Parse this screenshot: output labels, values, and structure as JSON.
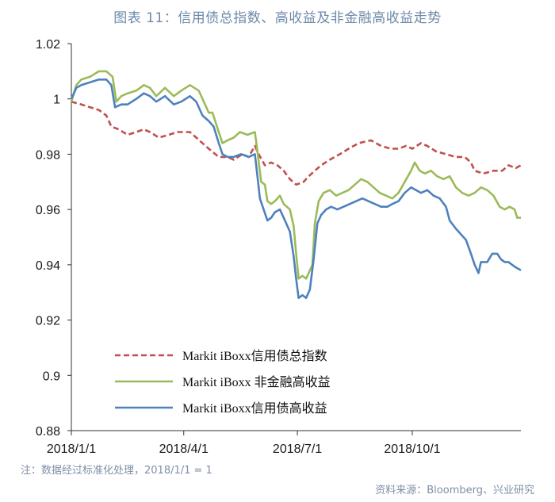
{
  "title": "图表 11：信用债总指数、高收益及非金融高收益走势",
  "note": "注：数据经过标准化处理，2018/1/1 = 1",
  "source": "资料来源：Bloomberg、兴业研究",
  "colors": {
    "total": "#c0504d",
    "nonfin": "#9bbb59",
    "hy": "#4f81bd",
    "axis": "#333333"
  },
  "chart_data": {
    "type": "line",
    "title": "图表 11：信用债总指数、高收益及非金融高收益走势",
    "xlabel": "",
    "ylabel": "",
    "ylim": [
      0.88,
      1.02
    ],
    "yticks": [
      "1.02",
      "1",
      "0.98",
      "0.96",
      "0.94",
      "0.92",
      "0.9",
      "0.88"
    ],
    "xticks": [
      "2018/1/1",
      "2018/4/1",
      "2018/7/1",
      "2018/10/1"
    ],
    "xtick_days": [
      0,
      90,
      181,
      273
    ],
    "x_end_day": 360,
    "legend_position": "bottom-left",
    "series": [
      {
        "key": "total",
        "name": "Markit iBoxx信用债总指数",
        "style": "dashed",
        "points": [
          [
            0,
            0.999
          ],
          [
            8,
            0.998
          ],
          [
            15,
            0.997
          ],
          [
            22,
            0.996
          ],
          [
            28,
            0.994
          ],
          [
            32,
            0.99
          ],
          [
            38,
            0.989
          ],
          [
            45,
            0.987
          ],
          [
            52,
            0.988
          ],
          [
            58,
            0.989
          ],
          [
            63,
            0.988
          ],
          [
            70,
            0.986
          ],
          [
            78,
            0.987
          ],
          [
            85,
            0.988
          ],
          [
            95,
            0.988
          ],
          [
            100,
            0.986
          ],
          [
            110,
            0.982
          ],
          [
            118,
            0.979
          ],
          [
            125,
            0.979
          ],
          [
            130,
            0.978
          ],
          [
            137,
            0.98
          ],
          [
            142,
            0.979
          ],
          [
            147,
            0.983
          ],
          [
            150,
            0.98
          ],
          [
            155,
            0.976
          ],
          [
            160,
            0.977
          ],
          [
            165,
            0.976
          ],
          [
            170,
            0.974
          ],
          [
            175,
            0.971
          ],
          [
            180,
            0.969
          ],
          [
            186,
            0.97
          ],
          [
            190,
            0.972
          ],
          [
            195,
            0.974
          ],
          [
            200,
            0.976
          ],
          [
            207,
            0.978
          ],
          [
            215,
            0.98
          ],
          [
            222,
            0.982
          ],
          [
            230,
            0.984
          ],
          [
            240,
            0.985
          ],
          [
            248,
            0.983
          ],
          [
            256,
            0.982
          ],
          [
            262,
            0.982
          ],
          [
            268,
            0.983
          ],
          [
            273,
            0.982
          ],
          [
            280,
            0.984
          ],
          [
            285,
            0.983
          ],
          [
            292,
            0.981
          ],
          [
            300,
            0.98
          ],
          [
            308,
            0.979
          ],
          [
            315,
            0.979
          ],
          [
            320,
            0.977
          ],
          [
            323,
            0.974
          ],
          [
            330,
            0.973
          ],
          [
            338,
            0.974
          ],
          [
            345,
            0.974
          ],
          [
            350,
            0.976
          ],
          [
            356,
            0.975
          ],
          [
            360,
            0.976
          ]
        ]
      },
      {
        "key": "nonfin",
        "name": "Markit iBoxx 非金融高收益",
        "style": "solid",
        "points": [
          [
            0,
            0.999
          ],
          [
            4,
            1.005
          ],
          [
            8,
            1.007
          ],
          [
            15,
            1.008
          ],
          [
            22,
            1.01
          ],
          [
            28,
            1.01
          ],
          [
            33,
            1.008
          ],
          [
            36,
            0.999
          ],
          [
            40,
            1.001
          ],
          [
            45,
            1.002
          ],
          [
            52,
            1.003
          ],
          [
            58,
            1.005
          ],
          [
            63,
            1.004
          ],
          [
            68,
            1.001
          ],
          [
            75,
            1.004
          ],
          [
            82,
            1.001
          ],
          [
            88,
            1.003
          ],
          [
            95,
            1.005
          ],
          [
            102,
            1.003
          ],
          [
            106,
            0.999
          ],
          [
            110,
            0.995
          ],
          [
            113,
            0.995
          ],
          [
            118,
            0.988
          ],
          [
            121,
            0.984
          ],
          [
            125,
            0.985
          ],
          [
            130,
            0.986
          ],
          [
            135,
            0.988
          ],
          [
            141,
            0.987
          ],
          [
            147,
            0.988
          ],
          [
            149,
            0.981
          ],
          [
            152,
            0.97
          ],
          [
            155,
            0.969
          ],
          [
            157,
            0.963
          ],
          [
            160,
            0.962
          ],
          [
            163,
            0.963
          ],
          [
            167,
            0.965
          ],
          [
            170,
            0.962
          ],
          [
            175,
            0.96
          ],
          [
            178,
            0.954
          ],
          [
            180,
            0.944
          ],
          [
            182,
            0.935
          ],
          [
            185,
            0.936
          ],
          [
            188,
            0.935
          ],
          [
            190,
            0.937
          ],
          [
            193,
            0.94
          ],
          [
            195,
            0.955
          ],
          [
            198,
            0.963
          ],
          [
            202,
            0.966
          ],
          [
            207,
            0.967
          ],
          [
            212,
            0.965
          ],
          [
            217,
            0.966
          ],
          [
            222,
            0.967
          ],
          [
            227,
            0.969
          ],
          [
            232,
            0.971
          ],
          [
            237,
            0.97
          ],
          [
            242,
            0.968
          ],
          [
            247,
            0.966
          ],
          [
            252,
            0.965
          ],
          [
            257,
            0.964
          ],
          [
            262,
            0.966
          ],
          [
            267,
            0.97
          ],
          [
            272,
            0.974
          ],
          [
            275,
            0.977
          ],
          [
            279,
            0.974
          ],
          [
            283,
            0.973
          ],
          [
            288,
            0.974
          ],
          [
            293,
            0.972
          ],
          [
            298,
            0.971
          ],
          [
            303,
            0.972
          ],
          [
            308,
            0.968
          ],
          [
            313,
            0.966
          ],
          [
            318,
            0.965
          ],
          [
            323,
            0.966
          ],
          [
            328,
            0.968
          ],
          [
            333,
            0.967
          ],
          [
            338,
            0.965
          ],
          [
            343,
            0.961
          ],
          [
            347,
            0.96
          ],
          [
            351,
            0.961
          ],
          [
            355,
            0.96
          ],
          [
            357,
            0.957
          ],
          [
            360,
            0.957
          ]
        ]
      },
      {
        "key": "hy",
        "name": "Markit iBoxx信用债高收益",
        "style": "solid",
        "points": [
          [
            0,
            1.0
          ],
          [
            4,
            1.004
          ],
          [
            8,
            1.005
          ],
          [
            15,
            1.006
          ],
          [
            22,
            1.007
          ],
          [
            28,
            1.007
          ],
          [
            32,
            1.005
          ],
          [
            35,
            0.997
          ],
          [
            40,
            0.998
          ],
          [
            45,
            0.998
          ],
          [
            52,
            1.0
          ],
          [
            58,
            1.002
          ],
          [
            63,
            1.001
          ],
          [
            68,
            0.999
          ],
          [
            75,
            1.001
          ],
          [
            82,
            0.998
          ],
          [
            88,
            0.999
          ],
          [
            95,
            1.001
          ],
          [
            100,
            0.999
          ],
          [
            105,
            0.994
          ],
          [
            110,
            0.992
          ],
          [
            114,
            0.99
          ],
          [
            118,
            0.984
          ],
          [
            121,
            0.98
          ],
          [
            125,
            0.979
          ],
          [
            130,
            0.979
          ],
          [
            136,
            0.98
          ],
          [
            142,
            0.979
          ],
          [
            147,
            0.98
          ],
          [
            149,
            0.972
          ],
          [
            151,
            0.964
          ],
          [
            154,
            0.96
          ],
          [
            157,
            0.956
          ],
          [
            160,
            0.957
          ],
          [
            163,
            0.959
          ],
          [
            167,
            0.96
          ],
          [
            170,
            0.957
          ],
          [
            175,
            0.952
          ],
          [
            178,
            0.943
          ],
          [
            180,
            0.935
          ],
          [
            182,
            0.928
          ],
          [
            185,
            0.929
          ],
          [
            188,
            0.928
          ],
          [
            191,
            0.931
          ],
          [
            194,
            0.942
          ],
          [
            197,
            0.955
          ],
          [
            200,
            0.958
          ],
          [
            204,
            0.96
          ],
          [
            208,
            0.961
          ],
          [
            213,
            0.96
          ],
          [
            218,
            0.961
          ],
          [
            223,
            0.962
          ],
          [
            228,
            0.963
          ],
          [
            233,
            0.964
          ],
          [
            238,
            0.963
          ],
          [
            243,
            0.962
          ],
          [
            248,
            0.961
          ],
          [
            253,
            0.961
          ],
          [
            257,
            0.962
          ],
          [
            262,
            0.963
          ],
          [
            267,
            0.966
          ],
          [
            272,
            0.968
          ],
          [
            276,
            0.967
          ],
          [
            280,
            0.966
          ],
          [
            285,
            0.967
          ],
          [
            290,
            0.965
          ],
          [
            295,
            0.964
          ],
          [
            300,
            0.961
          ],
          [
            303,
            0.956
          ],
          [
            308,
            0.953
          ],
          [
            312,
            0.951
          ],
          [
            316,
            0.949
          ],
          [
            320,
            0.944
          ],
          [
            323,
            0.94
          ],
          [
            326,
            0.937
          ],
          [
            328,
            0.941
          ],
          [
            333,
            0.941
          ],
          [
            337,
            0.944
          ],
          [
            341,
            0.944
          ],
          [
            344,
            0.942
          ],
          [
            347,
            0.941
          ],
          [
            350,
            0.941
          ],
          [
            353,
            0.94
          ],
          [
            356,
            0.939
          ],
          [
            360,
            0.938
          ]
        ]
      }
    ]
  }
}
